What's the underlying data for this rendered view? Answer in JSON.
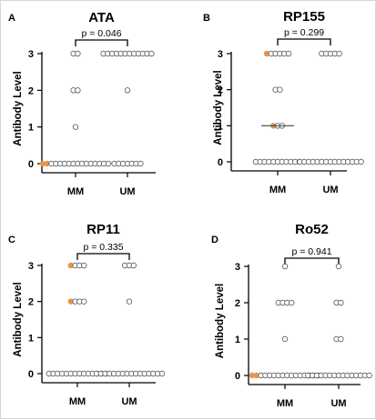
{
  "colors": {
    "point_stroke": "#555555",
    "highlight": "#e8944a",
    "axis": "#000000",
    "median": "#444444"
  },
  "chart_data": [
    {
      "panel": "A",
      "title": "ATA",
      "type": "scatter",
      "ylabel": "Antibody Level",
      "categories": [
        "MM",
        "UM"
      ],
      "ylim": [
        0,
        3
      ],
      "yticks": [
        "0",
        "1",
        "2",
        "3"
      ],
      "pvalue": "p = 0.046",
      "series": [
        {
          "category": "MM",
          "points": [
            {
              "y": 3,
              "count": 2,
              "highlight": 0
            },
            {
              "y": 2,
              "count": 2,
              "highlight": 0
            },
            {
              "y": 1,
              "count": 1,
              "highlight": 0
            },
            {
              "y": 0,
              "count": 16,
              "highlight": 2
            }
          ]
        },
        {
          "category": "UM",
          "points": [
            {
              "y": 3,
              "count": 12,
              "highlight": 0
            },
            {
              "y": 2,
              "count": 1,
              "highlight": 0
            },
            {
              "y": 0,
              "count": 7,
              "highlight": 0
            }
          ]
        }
      ],
      "median": []
    },
    {
      "panel": "B",
      "title": "RP155",
      "type": "scatter",
      "ylabel": "Antibody Level",
      "categories": [
        "MM",
        "UM"
      ],
      "ylim": [
        0,
        3
      ],
      "yticks": [
        "0",
        "1",
        "2",
        "3"
      ],
      "pvalue": "p = 0.299",
      "series": [
        {
          "category": "MM",
          "points": [
            {
              "y": 3,
              "count": 6,
              "highlight": 1
            },
            {
              "y": 2,
              "count": 2,
              "highlight": 0
            },
            {
              "y": 1,
              "count": 3,
              "highlight": 1
            },
            {
              "y": 0,
              "count": 11,
              "highlight": 0
            }
          ]
        },
        {
          "category": "UM",
          "points": [
            {
              "y": 3,
              "count": 5,
              "highlight": 0
            },
            {
              "y": 0,
              "count": 15,
              "highlight": 0
            }
          ]
        }
      ],
      "median": [
        {
          "category": "MM",
          "y": 1
        }
      ]
    },
    {
      "panel": "C",
      "title": "RP11",
      "type": "scatter",
      "ylabel": "Antibody Level",
      "categories": [
        "MM",
        "UM"
      ],
      "ylim": [
        0,
        3
      ],
      "yticks": [
        "0",
        "1",
        "2",
        "3"
      ],
      "pvalue": "p = 0.335",
      "series": [
        {
          "category": "MM",
          "points": [
            {
              "y": 3,
              "count": 4,
              "highlight": 1
            },
            {
              "y": 2,
              "count": 4,
              "highlight": 1
            },
            {
              "y": 0,
              "count": 14,
              "highlight": 0
            }
          ]
        },
        {
          "category": "UM",
          "points": [
            {
              "y": 3,
              "count": 3,
              "highlight": 0
            },
            {
              "y": 2,
              "count": 1,
              "highlight": 0
            },
            {
              "y": 0,
              "count": 16,
              "highlight": 0
            }
          ]
        }
      ],
      "median": []
    },
    {
      "panel": "D",
      "title": "Ro52",
      "type": "scatter",
      "ylabel": "Antibody Level",
      "categories": [
        "MM",
        "UM"
      ],
      "ylim": [
        0,
        3
      ],
      "yticks": [
        "0",
        "1",
        "2",
        "3"
      ],
      "pvalue": "p = 0.941",
      "series": [
        {
          "category": "MM",
          "points": [
            {
              "y": 3,
              "count": 1,
              "highlight": 0
            },
            {
              "y": 2,
              "count": 4,
              "highlight": 0
            },
            {
              "y": 1,
              "count": 1,
              "highlight": 0
            },
            {
              "y": 0,
              "count": 16,
              "highlight": 2
            }
          ]
        },
        {
          "category": "UM",
          "points": [
            {
              "y": 3,
              "count": 1,
              "highlight": 0
            },
            {
              "y": 2,
              "count": 2,
              "highlight": 0
            },
            {
              "y": 1,
              "count": 2,
              "highlight": 0
            },
            {
              "y": 0,
              "count": 15,
              "highlight": 0
            }
          ]
        }
      ],
      "median": []
    }
  ]
}
